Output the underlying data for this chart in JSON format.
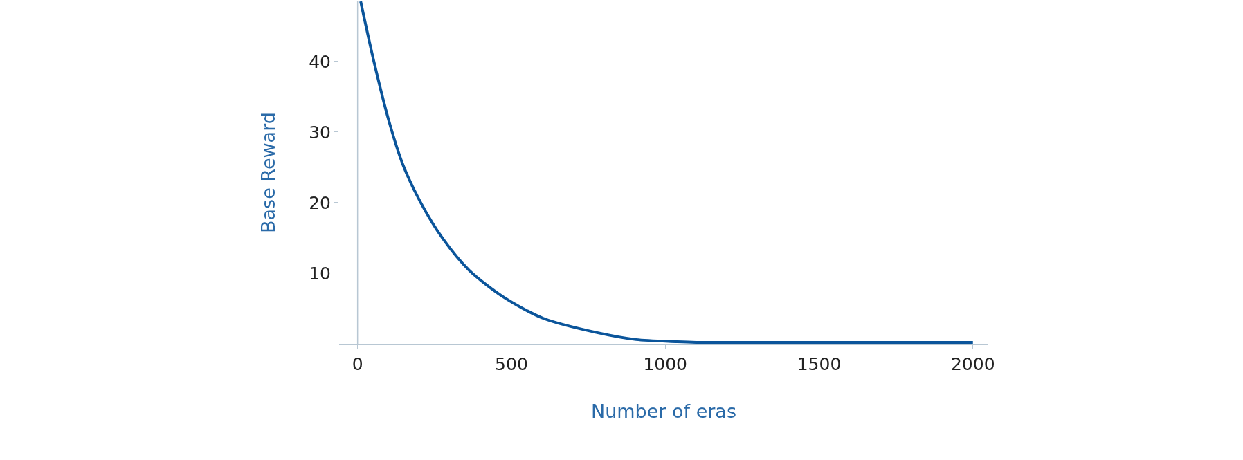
{
  "chart_data": {
    "type": "line",
    "xlabel": "Number of eras",
    "ylabel": "Base Reward",
    "x": [
      10,
      53,
      101,
      148,
      204,
      277,
      363,
      475,
      604,
      776,
      905,
      1034,
      1100,
      1500,
      2000
    ],
    "series": [
      {
        "color": "#0b559b",
        "values": [
          48.5,
          40,
          31.7,
          25.3,
          20.1,
          14.9,
          10.4,
          6.6,
          3.6,
          1.6,
          0.6,
          0.3,
          0.2,
          0.2,
          0.2
        ]
      }
    ],
    "xlim": [
      -60,
      2050
    ],
    "ylim": [
      0,
      48.5
    ],
    "xticks": [
      0,
      500,
      1000,
      1500,
      2000
    ],
    "yticks": [
      10,
      20,
      30,
      40
    ],
    "grid": false,
    "marker": "none",
    "line_style": "solid"
  }
}
